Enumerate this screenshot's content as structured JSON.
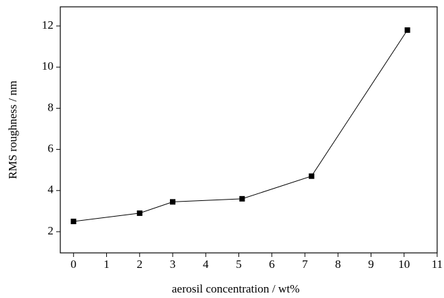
{
  "chart_data": {
    "type": "line",
    "x_label": "aerosil concentration / wt%",
    "y_label": "RMS roughness / nm",
    "x": [
      0,
      2,
      3,
      5.1,
      7.2,
      10.1
    ],
    "series": [
      {
        "values": [
          2.5,
          2.9,
          3.45,
          3.6,
          4.7,
          11.8
        ],
        "color": "#000000"
      }
    ],
    "xlim": [
      -0.4,
      11
    ],
    "ylim": [
      0.97,
      12.93
    ],
    "xticks": [
      0,
      1,
      2,
      3,
      4,
      5,
      6,
      7,
      8,
      9,
      10,
      11
    ],
    "yticks": [
      2,
      4,
      6,
      8,
      10,
      12
    ],
    "grid": false
  }
}
